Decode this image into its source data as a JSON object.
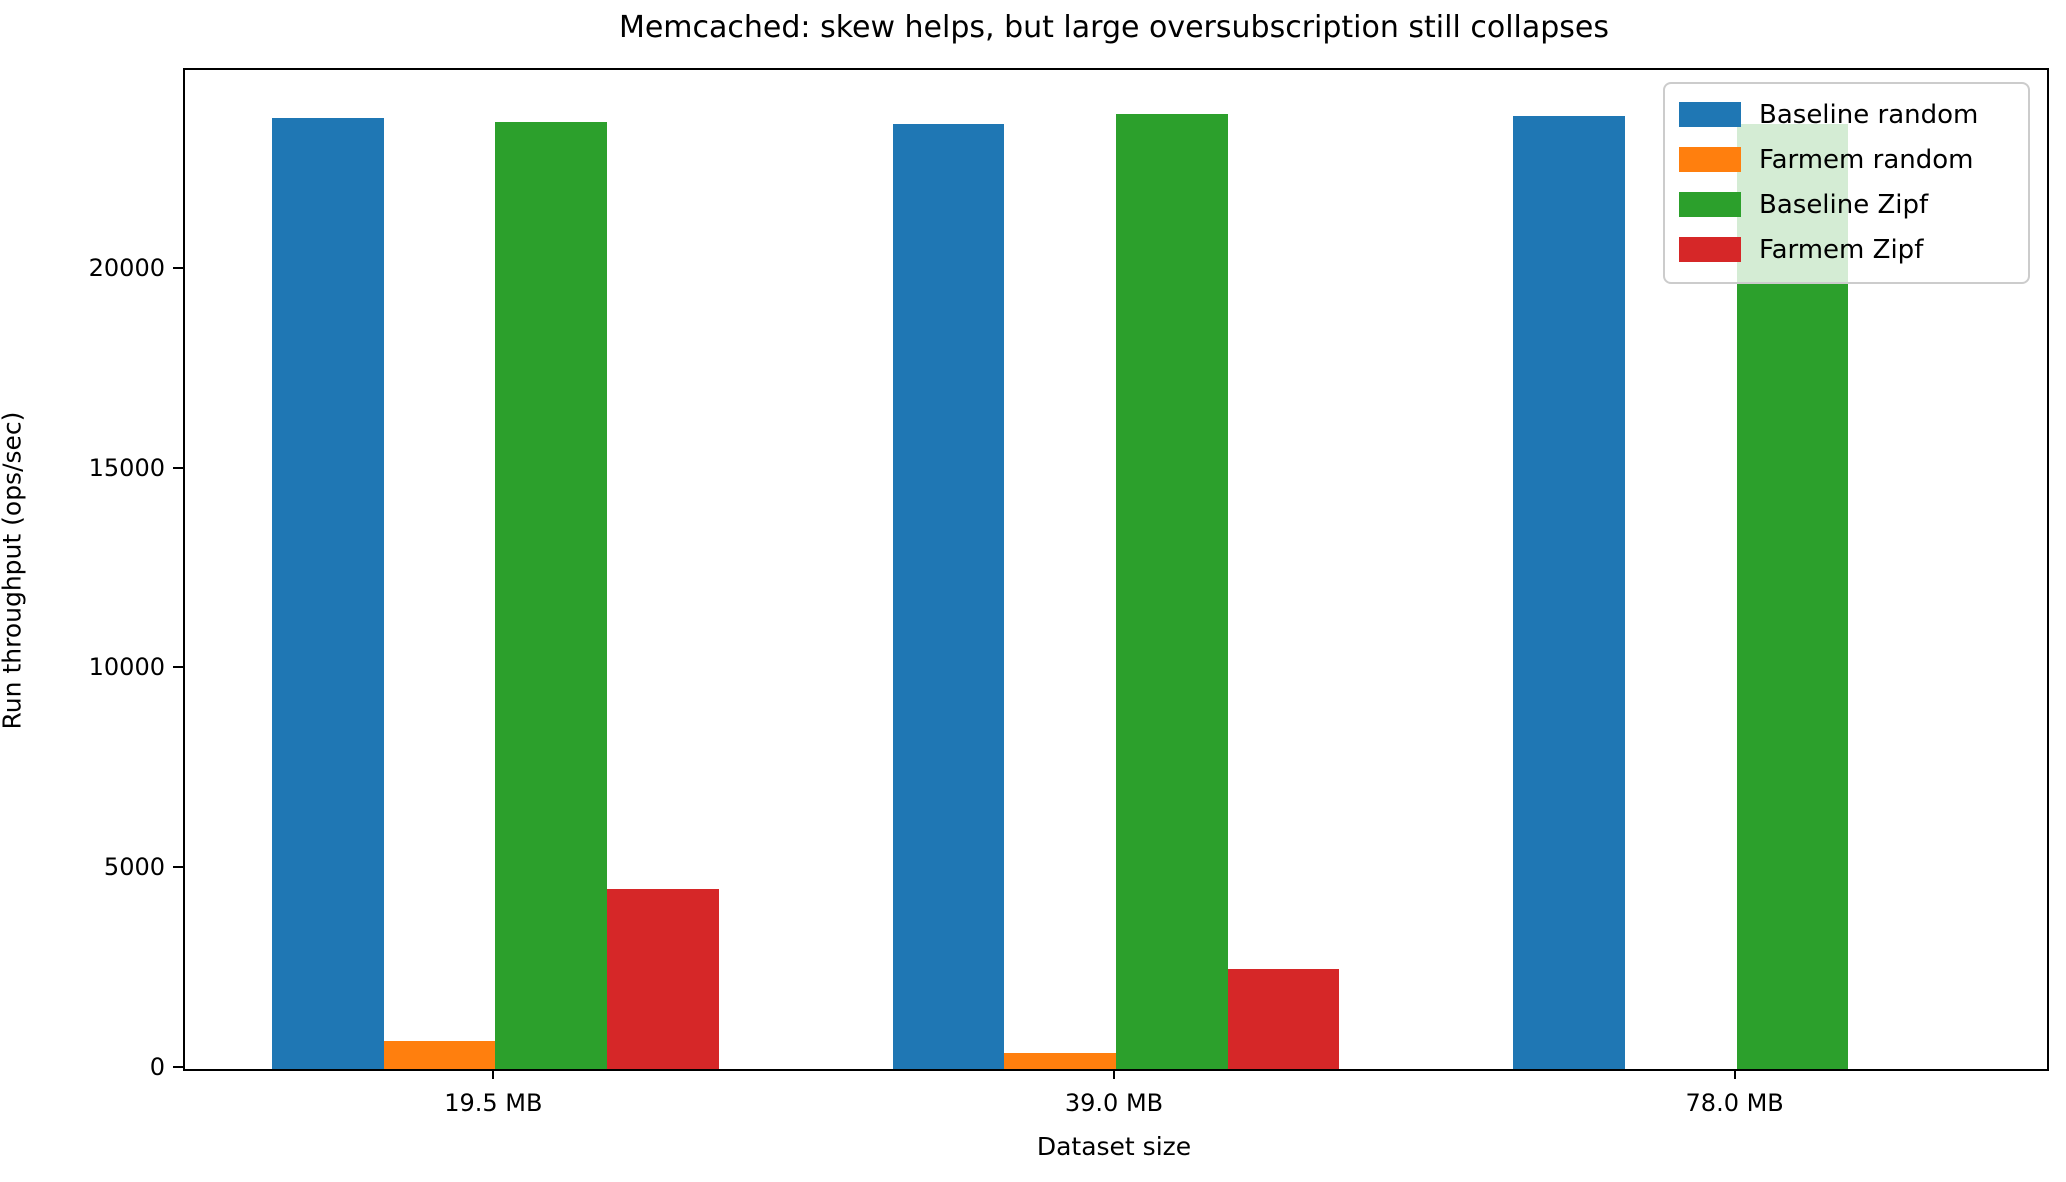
{
  "figure": {
    "title": "Memcached: skew helps, but large oversubscription still collapses",
    "xlabel": "Dataset size",
    "ylabel": "Run throughput (ops/sec)"
  },
  "chart_data": {
    "type": "bar",
    "title": "Memcached: skew helps, but large oversubscription still collapses",
    "xlabel": "Dataset size",
    "ylabel": "Run throughput (ops/sec)",
    "categories": [
      "19.5 MB",
      "39.0 MB",
      "78.0 MB"
    ],
    "series": [
      {
        "name": "Baseline random",
        "color": "#1f77b4",
        "values": [
          23800,
          23650,
          23850
        ]
      },
      {
        "name": "Farmem random",
        "color": "#ff7f0e",
        "values": [
          700,
          400,
          0
        ]
      },
      {
        "name": "Baseline Zipf",
        "color": "#2ca02c",
        "values": [
          23700,
          23900,
          23650
        ]
      },
      {
        "name": "Farmem Zipf",
        "color": "#d62728",
        "values": [
          4500,
          2500,
          0
        ]
      }
    ],
    "ylim": [
      0,
      25000
    ],
    "yticks": [
      0,
      5000,
      10000,
      15000,
      20000
    ],
    "bar_width_data_units": 0.18,
    "xlim": [
      -0.5,
      2.5
    ],
    "grid": false,
    "legend": {
      "position": "upper right",
      "labels": [
        "Baseline random",
        "Farmem random",
        "Baseline Zipf",
        "Farmem Zipf"
      ]
    },
    "background_color": "#ffffff",
    "spine_color": "#000000"
  }
}
